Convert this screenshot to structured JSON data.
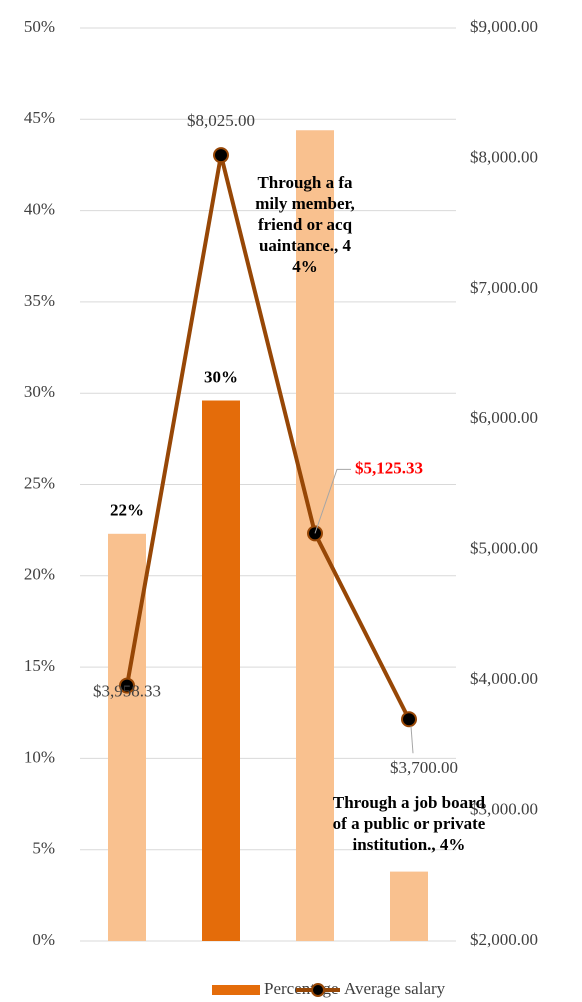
{
  "chart_data": {
    "type": "bar",
    "categories": [
      null,
      null,
      null,
      null
    ],
    "series": [
      {
        "name": "Percentage",
        "type": "bar",
        "color": "#e46c0a",
        "colors": [
          "#f9c18f",
          "#e46c0a",
          "#f9c18f",
          "#f9c18f"
        ],
        "values": [
          22.3,
          29.6,
          44.4,
          3.8
        ],
        "value_labels": [
          "22%",
          "30%",
          "Through a family member, friend or acquaintance., 44%",
          "Through a job board of a public or private institution., 4%"
        ]
      },
      {
        "name": "Average salary",
        "type": "line",
        "axis": "y2",
        "color": "#974706",
        "values": [
          3958.33,
          8025,
          5125.33,
          3700
        ],
        "value_labels": [
          "$3,958.33",
          "$8,025.00",
          "$5,125.33",
          "$3,700.00"
        ]
      }
    ],
    "ylim": [
      0,
      50
    ],
    "yticks": [
      {
        "value": 0,
        "label": "0%"
      },
      {
        "value": 5,
        "label": "5%"
      },
      {
        "value": 10,
        "label": "10%"
      },
      {
        "value": 15,
        "label": "15%"
      },
      {
        "value": 20,
        "label": "20%"
      },
      {
        "value": 25,
        "label": "25%"
      },
      {
        "value": 30,
        "label": "30%"
      },
      {
        "value": 35,
        "label": "35%"
      },
      {
        "value": 40,
        "label": "40%"
      },
      {
        "value": 45,
        "label": "45%"
      },
      {
        "value": 50,
        "label": "50%"
      }
    ],
    "y2lim": [
      2000,
      9000
    ],
    "y2ticks": [
      {
        "value": 2000,
        "label": "$2,000.00"
      },
      {
        "value": 3000,
        "label": "$3,000.00"
      },
      {
        "value": 4000,
        "label": "$4,000.00"
      },
      {
        "value": 5000,
        "label": "$5,000.00"
      },
      {
        "value": 6000,
        "label": "$6,000.00"
      },
      {
        "value": 7000,
        "label": "$7,000.00"
      },
      {
        "value": 8000,
        "label": "$8,000.00"
      },
      {
        "value": 9000,
        "label": "$9,000.00"
      }
    ],
    "grid": true,
    "legend": "bottom"
  }
}
